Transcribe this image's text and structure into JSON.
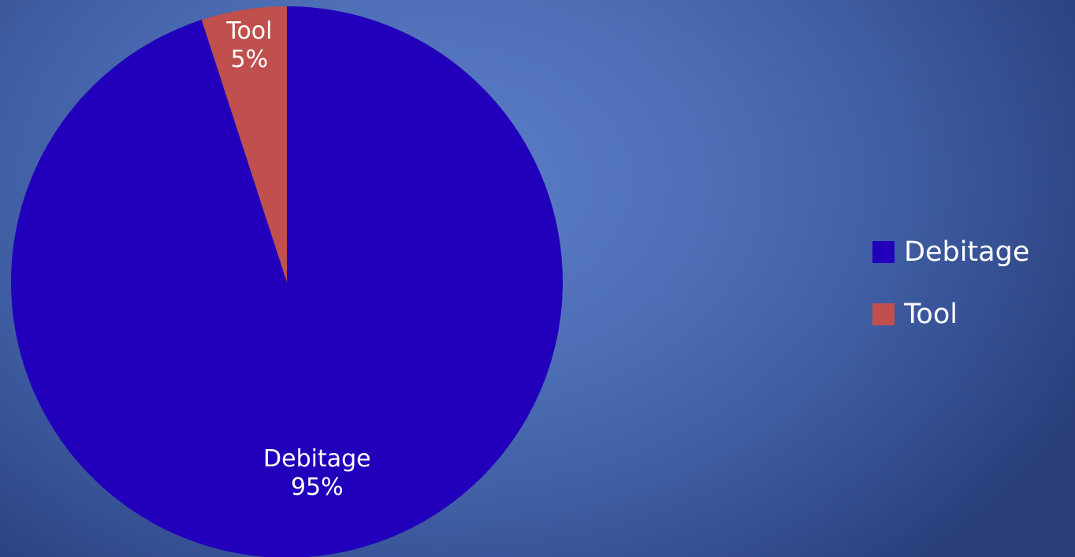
{
  "chart_data": {
    "type": "pie",
    "categories": [
      "Debitage",
      "Tool"
    ],
    "values": [
      95,
      5
    ],
    "value_labels": [
      "95%",
      "5%"
    ],
    "colors": [
      "#2200bb",
      "#c0504d"
    ],
    "start_angle": "12 o'clock",
    "direction": "clockwise",
    "legend": {
      "position": "right",
      "items": [
        "Debitage",
        "Tool"
      ]
    }
  }
}
